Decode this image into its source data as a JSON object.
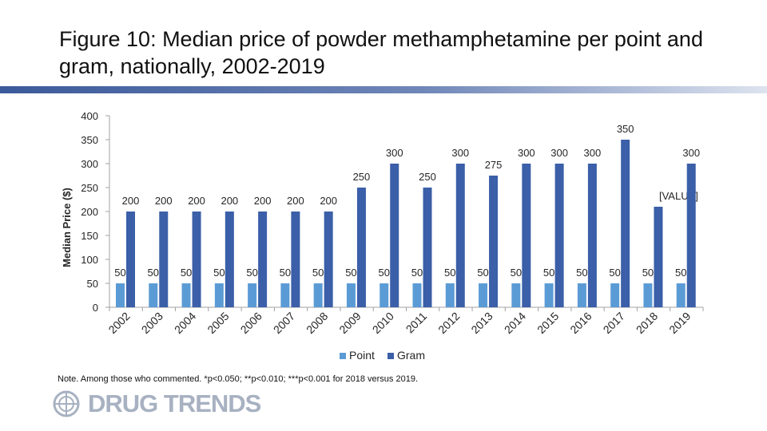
{
  "header": {
    "title": "Figure 10: Median price of powder methamphetamine per point and gram, nationally, 2002-2019"
  },
  "note": "Note. Among those who commented. *p<0.050; **p<0.010; ***p<0.001 for 2018 versus 2019.",
  "logo": {
    "text": "DRUG TRENDS",
    "icon": "globe-emblem-icon"
  },
  "colors": {
    "point": "#5b9bd5",
    "gram": "#3b5fa8",
    "axis": "#a0a0a0",
    "text": "#262626"
  },
  "chart_data": {
    "type": "bar",
    "title": "",
    "xlabel": "",
    "ylabel": "Median Price ($)",
    "ylim": [
      0,
      400
    ],
    "yticks": [
      0,
      50,
      100,
      150,
      200,
      250,
      300,
      350,
      400
    ],
    "grid": false,
    "legend": "bottom",
    "categories": [
      "2002",
      "2003",
      "2004",
      "2005",
      "2006",
      "2007",
      "2008",
      "2009",
      "2010",
      "2011",
      "2012",
      "2013",
      "2014",
      "2015",
      "2016",
      "2017",
      "2018",
      "2019"
    ],
    "series": [
      {
        "name": "Point",
        "values": [
          50,
          50,
          50,
          50,
          50,
          50,
          50,
          50,
          50,
          50,
          50,
          50,
          50,
          50,
          50,
          50,
          50,
          50
        ],
        "labels": [
          "50",
          "50",
          "50",
          "50",
          "50",
          "50",
          "50",
          "50",
          "50",
          "50",
          "50",
          "50",
          "50",
          "50",
          "50",
          "50",
          "50",
          "50"
        ]
      },
      {
        "name": "Gram",
        "values": [
          200,
          200,
          200,
          200,
          200,
          200,
          200,
          250,
          300,
          250,
          300,
          275,
          300,
          300,
          300,
          350,
          210,
          300
        ],
        "labels": [
          "200",
          "200",
          "200",
          "200",
          "200",
          "200",
          "200",
          "250",
          "300",
          "250",
          "300",
          "275",
          "300",
          "300",
          "300",
          "350",
          "[VALUE]",
          "300"
        ]
      }
    ]
  }
}
